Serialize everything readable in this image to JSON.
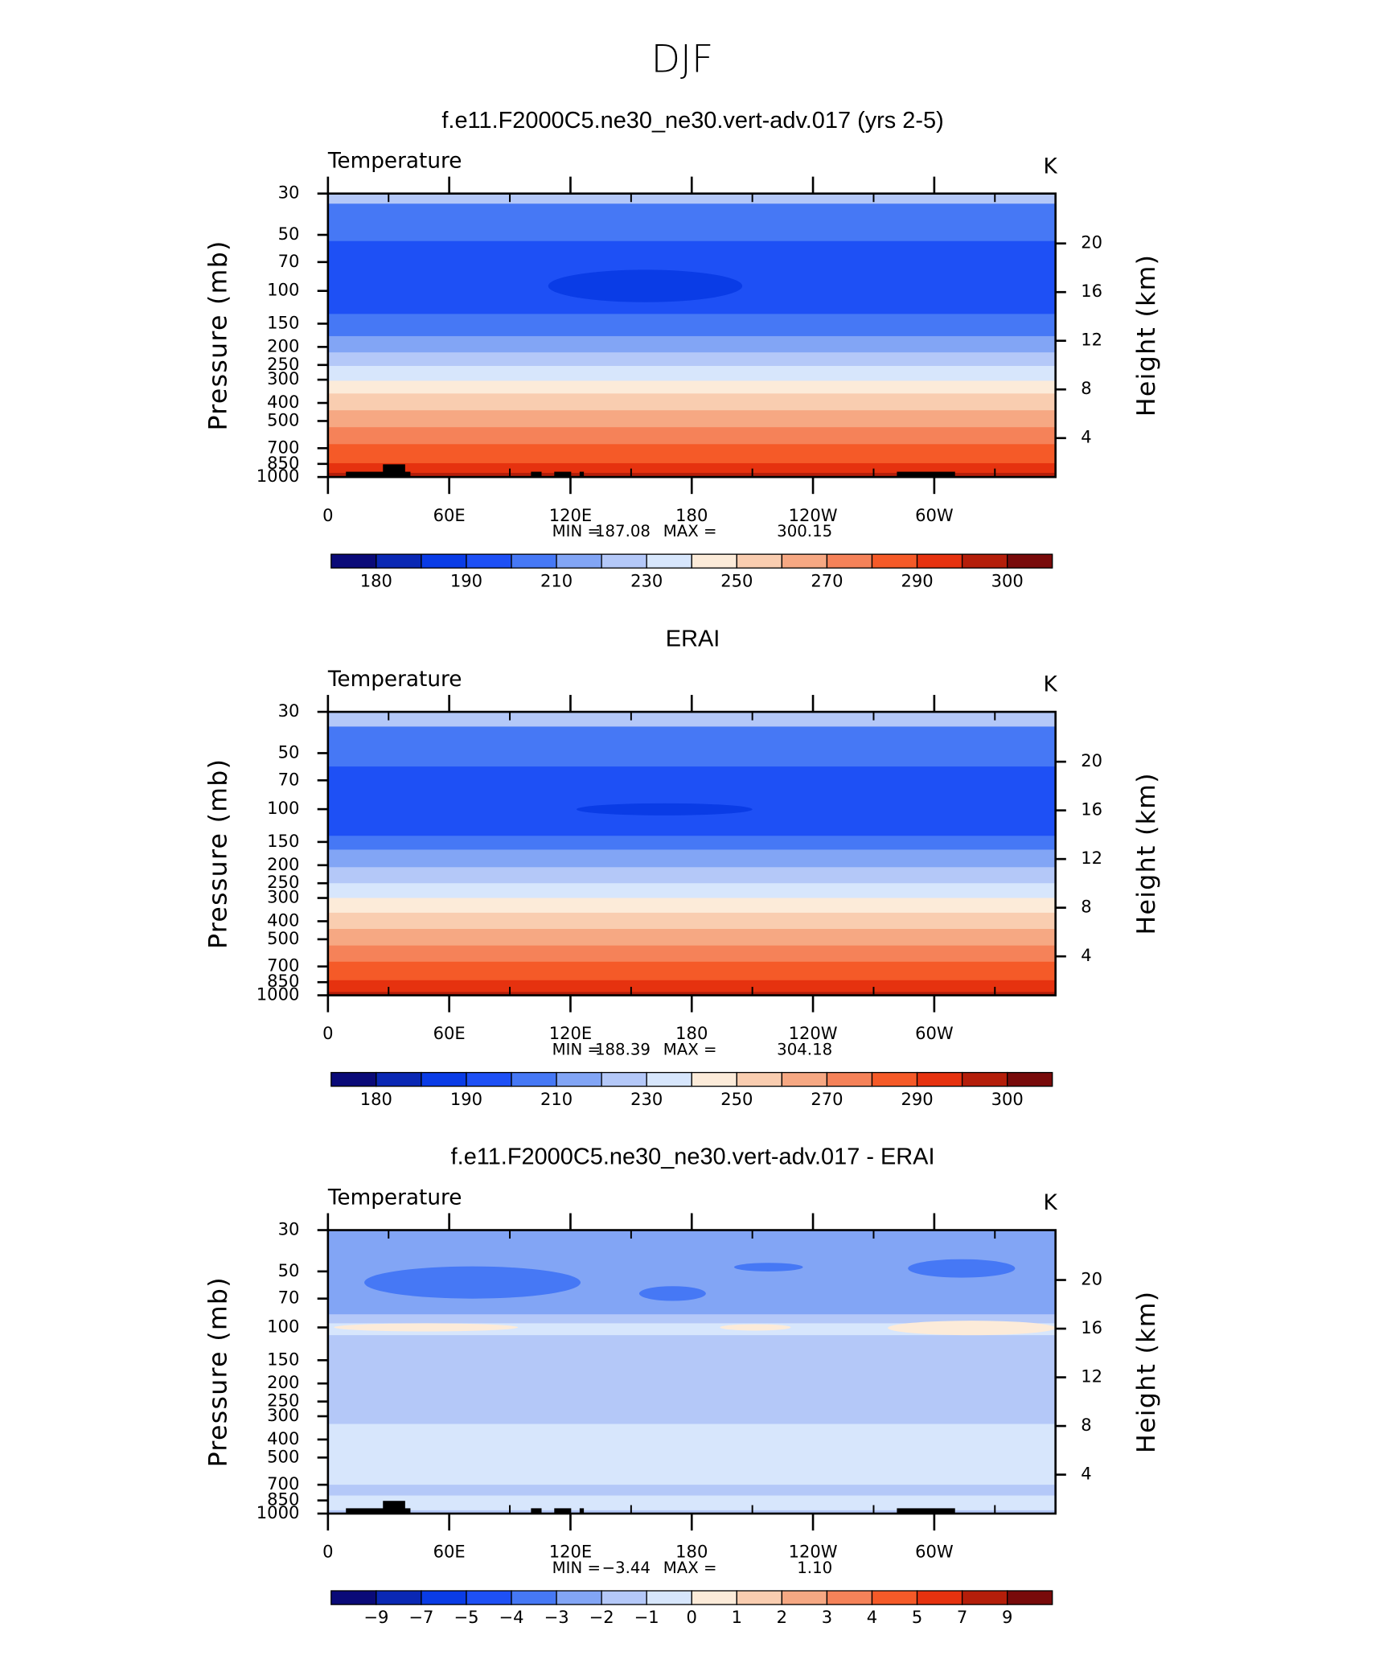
{
  "title": "DJF",
  "chart_data": [
    {
      "type": "contour",
      "title": "f.e11.F2000C5.ne30_ne30.vert-adv.017 (yrs 2-5)",
      "subtitle": "Temperature",
      "units": "K",
      "ylabel": "Pressure  (mb)",
      "y2label": "Height  (km)",
      "xlim": [
        0,
        360
      ],
      "xticks": [
        0,
        {
          "value": 60,
          "label": "60E"
        },
        {
          "value": 120,
          "label": "120E"
        },
        180,
        {
          "value": 240,
          "label": "120W"
        },
        {
          "value": 300,
          "label": "60W"
        }
      ],
      "xminorticks": [
        30,
        90,
        150,
        210,
        270,
        330
      ],
      "ylim": [
        1000,
        30
      ],
      "log_y": true,
      "yticks": [
        30,
        50,
        70,
        100,
        150,
        200,
        250,
        300,
        400,
        500,
        700,
        850,
        1000
      ],
      "y2lim": [
        0.8,
        24.1
      ],
      "y2ticks": [
        4,
        8,
        12,
        16,
        20
      ],
      "stats": {
        "min_label": "MIN =",
        "min": {
          "value": 187.08,
          "label": "187.08"
        },
        "max_label": "MAX =",
        "max": {
          "value": 300.15,
          "label": "300.15"
        }
      },
      "colors": [
        "#0a0a78",
        "#0a28b4",
        "#0a3ce6",
        "#1e50f5",
        "#4678f5",
        "#82a5f5",
        "#b4c8f8",
        "#d7e6fc",
        "#fcebd9",
        "#f9cdb0",
        "#f6a883",
        "#f58259",
        "#f55a28",
        "#e6320f",
        "#b41e0a",
        "#780a0a"
      ],
      "colorbar_labels": [
        180,
        190,
        210,
        230,
        250,
        270,
        290,
        300
      ],
      "colorbar_label_every": 2,
      "bands": [
        {
          "color": 6,
          "p": [
            30,
            34
          ]
        },
        {
          "color": 4,
          "p": [
            34,
            54
          ]
        },
        {
          "color": 3,
          "p": [
            54,
            133
          ]
        },
        {
          "color": 4,
          "p": [
            133,
            175
          ]
        },
        {
          "color": 5,
          "p": [
            175,
            214
          ]
        },
        {
          "color": 6,
          "p": [
            214,
            253
          ]
        },
        {
          "color": 7,
          "p": [
            253,
            304
          ]
        },
        {
          "color": 8,
          "p": [
            304,
            356
          ]
        },
        {
          "color": 9,
          "p": [
            356,
            438
          ]
        },
        {
          "color": 10,
          "p": [
            438,
            540
          ]
        },
        {
          "color": 11,
          "p": [
            540,
            666
          ]
        },
        {
          "color": 12,
          "p": [
            666,
            843
          ]
        },
        {
          "color": 13,
          "p": [
            843,
            950
          ]
        },
        {
          "color": 14,
          "p": [
            950,
            1000
          ]
        }
      ],
      "blobs": [
        {
          "color": 2,
          "lon": [
            109,
            205
          ],
          "p": [
            77,
            115
          ]
        }
      ]
    },
    {
      "type": "contour",
      "title": "ERAI",
      "subtitle": "Temperature",
      "units": "K",
      "ylabel": "Pressure  (mb)",
      "y2label": "Height  (km)",
      "xlim": [
        0,
        360
      ],
      "xticks": [
        0,
        {
          "value": 60,
          "label": "60E"
        },
        {
          "value": 120,
          "label": "120E"
        },
        180,
        {
          "value": 240,
          "label": "120W"
        },
        {
          "value": 300,
          "label": "60W"
        }
      ],
      "xminorticks": [
        30,
        90,
        150,
        210,
        270,
        330
      ],
      "ylim": [
        1000,
        30
      ],
      "log_y": true,
      "yticks": [
        30,
        50,
        70,
        100,
        150,
        200,
        250,
        300,
        400,
        500,
        700,
        850,
        1000
      ],
      "y2lim": [
        0.8,
        24.1
      ],
      "y2ticks": [
        4,
        8,
        12,
        16,
        20
      ],
      "stats": {
        "min_label": "MIN =",
        "min": {
          "value": 188.39,
          "label": "188.39"
        },
        "max_label": "MAX =",
        "max": {
          "value": 304.18,
          "label": "304.18"
        }
      },
      "colors": [
        "#0a0a78",
        "#0a28b4",
        "#0a3ce6",
        "#1e50f5",
        "#4678f5",
        "#82a5f5",
        "#b4c8f8",
        "#d7e6fc",
        "#fcebd9",
        "#f9cdb0",
        "#f6a883",
        "#f58259",
        "#f55a28",
        "#e6320f",
        "#b41e0a",
        "#780a0a"
      ],
      "colorbar_labels": [
        180,
        190,
        210,
        230,
        250,
        270,
        290,
        300
      ],
      "colorbar_label_every": 2,
      "bands": [
        {
          "color": 6,
          "p": [
            30,
            36
          ]
        },
        {
          "color": 4,
          "p": [
            36,
            59
          ]
        },
        {
          "color": 3,
          "p": [
            59,
            139
          ]
        },
        {
          "color": 4,
          "p": [
            139,
            165
          ]
        },
        {
          "color": 5,
          "p": [
            165,
            205
          ]
        },
        {
          "color": 6,
          "p": [
            205,
            250
          ]
        },
        {
          "color": 7,
          "p": [
            250,
            300
          ]
        },
        {
          "color": 8,
          "p": [
            300,
            360
          ]
        },
        {
          "color": 9,
          "p": [
            360,
            440
          ]
        },
        {
          "color": 10,
          "p": [
            440,
            540
          ]
        },
        {
          "color": 11,
          "p": [
            540,
            660
          ]
        },
        {
          "color": 12,
          "p": [
            660,
            830
          ]
        },
        {
          "color": 13,
          "p": [
            830,
            960
          ]
        },
        {
          "color": 14,
          "p": [
            960,
            1000
          ]
        }
      ],
      "blobs": [
        {
          "color": 2,
          "lon": [
            123,
            210
          ],
          "p": [
            93,
            108
          ]
        }
      ]
    },
    {
      "type": "contour",
      "title": "f.e11.F2000C5.ne30_ne30.vert-adv.017 - ERAI",
      "subtitle": "Temperature",
      "units": "K",
      "ylabel": "Pressure  (mb)",
      "y2label": "Height  (km)",
      "xlim": [
        0,
        360
      ],
      "xticks": [
        0,
        {
          "value": 60,
          "label": "60E"
        },
        {
          "value": 120,
          "label": "120E"
        },
        180,
        {
          "value": 240,
          "label": "120W"
        },
        {
          "value": 300,
          "label": "60W"
        }
      ],
      "xminorticks": [
        30,
        90,
        150,
        210,
        270,
        330
      ],
      "ylim": [
        1000,
        30
      ],
      "log_y": true,
      "yticks": [
        30,
        50,
        70,
        100,
        150,
        200,
        250,
        300,
        400,
        500,
        700,
        850,
        1000
      ],
      "y2lim": [
        0.8,
        24.1
      ],
      "y2ticks": [
        4,
        8,
        12,
        16,
        20
      ],
      "stats": {
        "min_label": "MIN =",
        "min": {
          "value": -3.44,
          "label": "−3.44"
        },
        "max_label": "MAX =",
        "max": {
          "value": 1.1,
          "label": "1.10"
        }
      },
      "colors": [
        "#0a0a78",
        "#0a28b4",
        "#0a3ce6",
        "#1e50f5",
        "#4678f5",
        "#82a5f5",
        "#b4c8f8",
        "#d7e6fc",
        "#fcebd9",
        "#f9cdb0",
        "#f6a883",
        "#f58259",
        "#f55a28",
        "#e6320f",
        "#b41e0a",
        "#780a0a"
      ],
      "colorbar_labels": [
        {
          "value": -9,
          "label": "−9"
        },
        {
          "value": -7,
          "label": "−7"
        },
        {
          "value": -5,
          "label": "−5"
        },
        {
          "value": -4,
          "label": "−4"
        },
        {
          "value": -3,
          "label": "−3"
        },
        {
          "value": -2,
          "label": "−2"
        },
        {
          "value": -1,
          "label": "−1"
        },
        0,
        1,
        2,
        3,
        4,
        5,
        7,
        9
      ],
      "colorbar_label_every": 1,
      "bands": [
        {
          "color": 5,
          "p": [
            30,
            85
          ]
        },
        {
          "color": 6,
          "p": [
            85,
            95
          ]
        },
        {
          "color": 7,
          "p": [
            95,
            110
          ]
        },
        {
          "color": 6,
          "p": [
            110,
            330
          ]
        },
        {
          "color": 7,
          "p": [
            330,
            700
          ]
        },
        {
          "color": 6,
          "p": [
            700,
            800
          ]
        },
        {
          "color": 7,
          "p": [
            800,
            960
          ]
        },
        {
          "color": 6,
          "p": [
            960,
            1000
          ]
        }
      ],
      "blobs": [
        {
          "color": 4,
          "lon": [
            18,
            125
          ],
          "p": [
            47,
            70
          ]
        },
        {
          "color": 4,
          "lon": [
            154,
            187
          ],
          "p": [
            60,
            72
          ]
        },
        {
          "color": 4,
          "lon": [
            201,
            235
          ],
          "p": [
            45,
            50
          ]
        },
        {
          "color": 4,
          "lon": [
            287,
            340
          ],
          "p": [
            43,
            54
          ]
        },
        {
          "color": 8,
          "lon": [
            3,
            94
          ],
          "p": [
            95,
            105
          ]
        },
        {
          "color": 8,
          "lon": [
            194,
            229
          ],
          "p": [
            96,
            104
          ]
        },
        {
          "color": 8,
          "lon": [
            277,
            360
          ],
          "p": [
            92,
            110
          ]
        }
      ]
    }
  ]
}
